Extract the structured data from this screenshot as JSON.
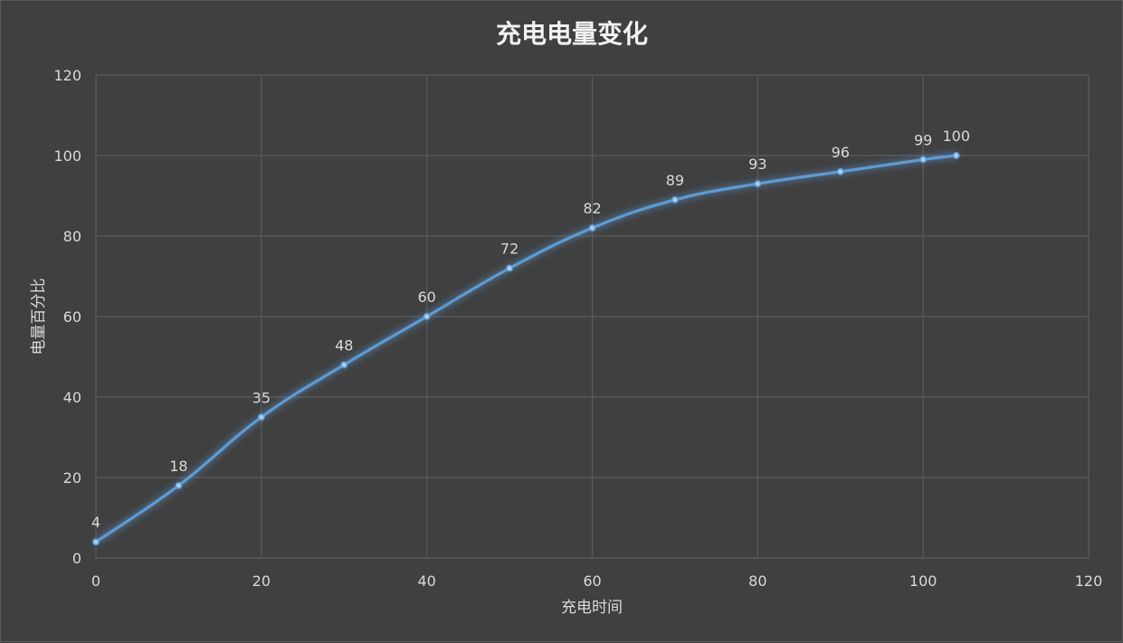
{
  "chart_data": {
    "type": "scatter",
    "title": "充电电量变化",
    "xlabel": "充电时间",
    "ylabel": "电量百分比",
    "x": [
      0,
      10,
      20,
      30,
      40,
      50,
      60,
      70,
      80,
      90,
      100,
      104
    ],
    "series": [
      {
        "values": [
          4,
          18,
          35,
          48,
          60,
          72,
          82,
          89,
          93,
          96,
          99,
          100
        ]
      }
    ],
    "data_labels": [
      "4",
      "18",
      "35",
      "48",
      "60",
      "72",
      "82",
      "89",
      "93",
      "96",
      "99",
      "100"
    ],
    "xlim": [
      0,
      120
    ],
    "ylim": [
      0,
      120
    ],
    "x_ticks": [
      "0",
      "20",
      "40",
      "60",
      "80",
      "100",
      "120"
    ],
    "y_ticks": [
      "0",
      "20",
      "40",
      "60",
      "80",
      "100",
      "120"
    ],
    "grid": true,
    "line_style": "smoothed line with markers",
    "colors": {
      "background": "#404040",
      "series": "#5b9bd5",
      "grid": "#5b5b5b",
      "text": "#d9d9d9",
      "title": "#f2f2f2"
    }
  }
}
